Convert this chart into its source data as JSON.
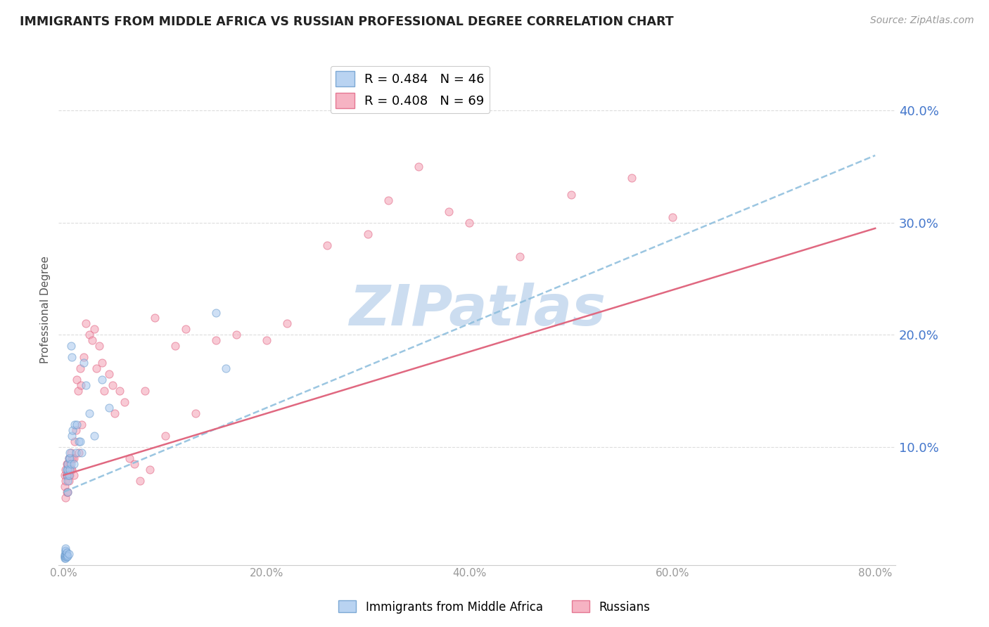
{
  "title": "IMMIGRANTS FROM MIDDLE AFRICA VS RUSSIAN PROFESSIONAL DEGREE CORRELATION CHART",
  "source": "Source: ZipAtlas.com",
  "xlabel_ticks": [
    "0.0%",
    "20.0%",
    "40.0%",
    "60.0%",
    "80.0%"
  ],
  "xlabel_tick_vals": [
    0.0,
    0.2,
    0.4,
    0.6,
    0.8
  ],
  "ylabel_ticks": [
    "10.0%",
    "20.0%",
    "30.0%",
    "40.0%"
  ],
  "ylabel_tick_vals": [
    0.1,
    0.2,
    0.3,
    0.4
  ],
  "xlim": [
    -0.005,
    0.82
  ],
  "ylim": [
    -0.005,
    0.45
  ],
  "legend_label1": "R = 0.484   N = 46",
  "legend_label2": "R = 0.408   N = 69",
  "series1_label": "Immigrants from Middle Africa",
  "series2_label": "Russians",
  "color1_face": "#A8C8EE",
  "color2_face": "#F4A0B4",
  "color1_edge": "#6699CC",
  "color2_edge": "#E06080",
  "trendline1_color": "#8ABCDC",
  "trendline2_color": "#E06880",
  "watermark": "ZIPatlas",
  "watermark_color": "#CCDDF0",
  "series1_x": [
    0.001,
    0.001,
    0.001,
    0.001,
    0.002,
    0.002,
    0.002,
    0.002,
    0.002,
    0.002,
    0.003,
    0.003,
    0.003,
    0.003,
    0.003,
    0.004,
    0.004,
    0.004,
    0.004,
    0.004,
    0.005,
    0.005,
    0.005,
    0.006,
    0.006,
    0.006,
    0.007,
    0.007,
    0.008,
    0.008,
    0.009,
    0.01,
    0.011,
    0.012,
    0.013,
    0.015,
    0.016,
    0.018,
    0.02,
    0.022,
    0.025,
    0.03,
    0.038,
    0.045,
    0.15,
    0.16
  ],
  "series1_y": [
    0.001,
    0.002,
    0.003,
    0.004,
    0.001,
    0.003,
    0.005,
    0.007,
    0.008,
    0.01,
    0.002,
    0.004,
    0.006,
    0.075,
    0.08,
    0.003,
    0.06,
    0.07,
    0.08,
    0.085,
    0.005,
    0.075,
    0.09,
    0.08,
    0.09,
    0.095,
    0.085,
    0.19,
    0.11,
    0.18,
    0.115,
    0.085,
    0.12,
    0.095,
    0.12,
    0.105,
    0.105,
    0.095,
    0.175,
    0.155,
    0.13,
    0.11,
    0.16,
    0.135,
    0.22,
    0.17
  ],
  "series2_x": [
    0.001,
    0.001,
    0.002,
    0.002,
    0.002,
    0.003,
    0.003,
    0.003,
    0.004,
    0.004,
    0.004,
    0.005,
    0.005,
    0.005,
    0.006,
    0.006,
    0.007,
    0.007,
    0.008,
    0.008,
    0.009,
    0.01,
    0.01,
    0.011,
    0.012,
    0.013,
    0.014,
    0.015,
    0.016,
    0.017,
    0.018,
    0.02,
    0.022,
    0.025,
    0.028,
    0.03,
    0.032,
    0.035,
    0.038,
    0.04,
    0.045,
    0.048,
    0.05,
    0.055,
    0.06,
    0.065,
    0.07,
    0.075,
    0.08,
    0.085,
    0.09,
    0.1,
    0.11,
    0.12,
    0.13,
    0.15,
    0.17,
    0.2,
    0.22,
    0.26,
    0.3,
    0.32,
    0.35,
    0.38,
    0.4,
    0.45,
    0.5,
    0.56,
    0.6
  ],
  "series2_y": [
    0.065,
    0.075,
    0.055,
    0.07,
    0.08,
    0.06,
    0.075,
    0.085,
    0.06,
    0.075,
    0.085,
    0.07,
    0.08,
    0.09,
    0.075,
    0.085,
    0.08,
    0.095,
    0.08,
    0.09,
    0.09,
    0.075,
    0.09,
    0.105,
    0.115,
    0.16,
    0.15,
    0.095,
    0.17,
    0.155,
    0.12,
    0.18,
    0.21,
    0.2,
    0.195,
    0.205,
    0.17,
    0.19,
    0.175,
    0.15,
    0.165,
    0.155,
    0.13,
    0.15,
    0.14,
    0.09,
    0.085,
    0.07,
    0.15,
    0.08,
    0.215,
    0.11,
    0.19,
    0.205,
    0.13,
    0.195,
    0.2,
    0.195,
    0.21,
    0.28,
    0.29,
    0.32,
    0.35,
    0.31,
    0.3,
    0.27,
    0.325,
    0.34,
    0.305
  ],
  "trendline1_x": [
    0.0,
    0.8
  ],
  "trendline1_y": [
    0.06,
    0.36
  ],
  "trendline2_x": [
    0.0,
    0.8
  ],
  "trendline2_y": [
    0.075,
    0.295
  ],
  "marker_size": 8,
  "marker_alpha": 0.55
}
